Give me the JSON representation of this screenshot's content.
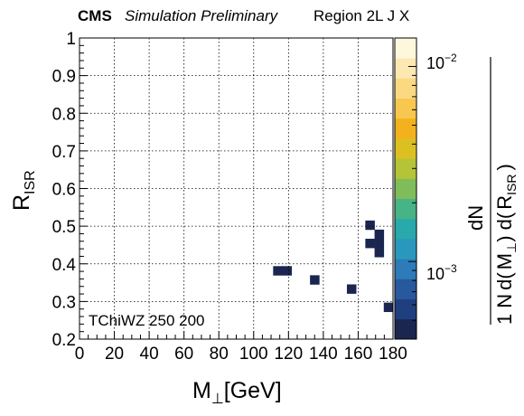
{
  "header": {
    "experiment": "CMS",
    "status": "Simulation Preliminary",
    "region": "Region 2L J X"
  },
  "annotation": "TChiWZ 250 200",
  "chart_data": {
    "type": "heatmap",
    "xlabel": {
      "main": "M",
      "sub": "⊥",
      "unit": "[GeV]"
    },
    "ylabel": {
      "main": "R",
      "sub": "ISR"
    },
    "zlabel": {
      "numerator": "dN",
      "one": "1",
      "N": "N",
      "d1": "d(",
      "M": "M",
      "Msub": "⊥",
      "d2": ") d(",
      "R": "R",
      "Rsub": "ISR",
      "close": ")"
    },
    "xlim": [
      0,
      180
    ],
    "ylim": [
      0.2,
      1.0
    ],
    "x_ticks": [
      0,
      20,
      40,
      60,
      80,
      100,
      120,
      140,
      160,
      180
    ],
    "x_tick_labels": [
      "0",
      "20",
      "40",
      "60",
      "80",
      "100",
      "120",
      "140",
      "160",
      "180"
    ],
    "y_ticks": [
      0.2,
      0.3,
      0.4,
      0.5,
      0.6,
      0.7,
      0.8,
      0.9,
      1.0
    ],
    "y_tick_labels": [
      "0.2",
      "0.3",
      "0.4",
      "0.5",
      "0.6",
      "0.7",
      "0.8",
      "0.9",
      "1"
    ],
    "z_scale": "log",
    "zlim": [
      0.0004,
      0.014
    ],
    "z_tick_labels": [
      {
        "value": 0.01,
        "base": "10",
        "exp": "−2"
      },
      {
        "value": 0.001,
        "base": "10",
        "exp": "−3"
      }
    ],
    "grid": true,
    "colormap": [
      "#1a2550",
      "#1f3f7f",
      "#28589d",
      "#2d7bb8",
      "#2a98bd",
      "#29a9ab",
      "#47b486",
      "#7fbd5a",
      "#b5c436",
      "#dcc022",
      "#f3b21d",
      "#f7c74f",
      "#fbd983",
      "#fde8b2",
      "#fff7dc"
    ],
    "bins": {
      "nx": 34,
      "ny": 33,
      "x_start": 0,
      "x_width": 5.294,
      "y_start": 0.2,
      "y_width": 0.02424,
      "values": [
        [
          0,
          0,
          0,
          0,
          0,
          0,
          0,
          0,
          0,
          0,
          0,
          0,
          0,
          0,
          0,
          0,
          0,
          0,
          0,
          0,
          0,
          0,
          0,
          0,
          0,
          0,
          0,
          0,
          0,
          0,
          0,
          0,
          0,
          0
        ],
        [
          0,
          0,
          0,
          0,
          0,
          0,
          0,
          0,
          0,
          0,
          0,
          0,
          0,
          0,
          0,
          0,
          0,
          0,
          0,
          0,
          0,
          0,
          0,
          0,
          0,
          0,
          0,
          0,
          0,
          0,
          0,
          0,
          0,
          0
        ],
        [
          0,
          0,
          0,
          0,
          0,
          0,
          0,
          0,
          0,
          0,
          0,
          0,
          0,
          0,
          0,
          0,
          0,
          0,
          0,
          0,
          0,
          0,
          0,
          0,
          0,
          0,
          0,
          0,
          0,
          0,
          0,
          0,
          0,
          0
        ],
        [
          0,
          0,
          0,
          0,
          0,
          0,
          0,
          0,
          0,
          0,
          0,
          0,
          0,
          0,
          0,
          0,
          0,
          0,
          0,
          0,
          0,
          0,
          0,
          0,
          0,
          0,
          0,
          0,
          0,
          0,
          0,
          0,
          0,
          0.0005
        ],
        [
          0,
          0,
          0,
          0,
          0,
          0,
          0,
          0,
          0,
          0,
          0,
          0,
          0,
          0,
          0,
          0,
          0,
          0,
          0,
          0,
          0,
          0,
          0,
          0,
          0,
          0,
          0,
          0,
          0,
          0,
          0,
          0,
          0,
          0
        ],
        [
          0,
          0,
          0,
          0,
          0,
          0,
          0,
          0,
          0,
          0,
          0,
          0,
          0,
          0,
          0,
          0,
          0,
          0,
          0,
          0,
          0,
          0,
          0,
          0,
          0,
          0,
          0,
          0,
          0,
          0.0005,
          0,
          0,
          0,
          0
        ],
        [
          0,
          0,
          0,
          0,
          0,
          0,
          0,
          0,
          0,
          0,
          0,
          0,
          0,
          0,
          0,
          0,
          0,
          0,
          0,
          0,
          0,
          0,
          0,
          0,
          0,
          0.0005,
          0,
          0,
          0,
          0,
          0,
          0,
          0,
          0
        ],
        [
          0,
          0,
          0,
          0,
          0,
          0,
          0,
          0,
          0,
          0,
          0,
          0,
          0,
          0,
          0,
          0,
          0,
          0,
          0,
          0,
          0,
          0.0005,
          0.0005,
          0,
          0,
          0,
          0,
          0,
          0,
          0,
          0,
          0,
          0,
          0
        ],
        [
          0,
          0,
          0,
          0,
          0,
          0,
          0,
          0,
          0,
          0,
          0,
          0,
          0,
          0,
          0,
          0,
          0,
          0,
          0,
          0,
          0,
          0,
          0,
          0,
          0,
          0,
          0,
          0,
          0,
          0,
          0,
          0,
          0,
          0
        ],
        [
          0,
          0,
          0,
          0,
          0,
          0,
          0,
          0,
          0,
          0,
          0,
          0,
          0,
          0,
          0,
          0,
          0,
          0,
          0,
          0,
          0,
          0,
          0,
          0,
          0,
          0,
          0,
          0,
          0,
          0,
          0,
          0,
          0.0005,
          0
        ],
        [
          0,
          0,
          0,
          0,
          0,
          0,
          0,
          0,
          0,
          0,
          0,
          0,
          0,
          0,
          0,
          0,
          0,
          0,
          0,
          0,
          0,
          0,
          0,
          0,
          0,
          0,
          0,
          0,
          0,
          0,
          0,
          0.0005,
          0.0005,
          0
        ],
        [
          0,
          0,
          0,
          0,
          0,
          0,
          0,
          0,
          0,
          0,
          0,
          0,
          0,
          0,
          0,
          0,
          0,
          0,
          0,
          0,
          0,
          0,
          0,
          0,
          0,
          0,
          0,
          0,
          0,
          0,
          0,
          0,
          0.0005,
          0
        ],
        [
          0,
          0,
          0,
          0,
          0,
          0,
          0,
          0,
          0,
          0,
          0,
          0,
          0,
          0,
          0,
          0,
          0,
          0,
          0,
          0,
          0,
          0,
          0,
          0,
          0,
          0,
          0,
          0,
          0,
          0,
          0,
          0.0005,
          0,
          0
        ],
        [
          0,
          0,
          0,
          0,
          0,
          0,
          0,
          0,
          0,
          0,
          0,
          0,
          0,
          0,
          0,
          0,
          0,
          0,
          0,
          0,
          0,
          0,
          0,
          0,
          0,
          0,
          0,
          0,
          0,
          0,
          0,
          0,
          0,
          0
        ],
        [
          0,
          0,
          0,
          0,
          0,
          0,
          0,
          0,
          0,
          0,
          0,
          0,
          0,
          0,
          0,
          0,
          0,
          0,
          0,
          0,
          0,
          0,
          0,
          0,
          0,
          0,
          0,
          0,
          0,
          0,
          0,
          0,
          0,
          0
        ],
        [
          0,
          0,
          0,
          0,
          0,
          0,
          0,
          0,
          0,
          0,
          0,
          0,
          0,
          0,
          0,
          0,
          0,
          0,
          0,
          0,
          0,
          0,
          0,
          0,
          0,
          0,
          0,
          0,
          0,
          0,
          0,
          0,
          0,
          0
        ],
        [
          0,
          0,
          0,
          0,
          0,
          0,
          0,
          0,
          0,
          0,
          0,
          0,
          0,
          0,
          0,
          0,
          0,
          0,
          0,
          0,
          0,
          0,
          0,
          0,
          0,
          0,
          0,
          0,
          0,
          0,
          0,
          0,
          0,
          0
        ],
        [
          0,
          0,
          0,
          0,
          0,
          0,
          0,
          0,
          0,
          0,
          0,
          0,
          0,
          0,
          0,
          0,
          0,
          0,
          0,
          0,
          0,
          0,
          0,
          0,
          0,
          0,
          0,
          0,
          0,
          0,
          0,
          0,
          0,
          0
        ],
        [
          0,
          0,
          0,
          0,
          0,
          0,
          0,
          0,
          0,
          0,
          0,
          0,
          0,
          0,
          0,
          0,
          0,
          0,
          0,
          0,
          0,
          0,
          0,
          0,
          0,
          0,
          0,
          0,
          0,
          0,
          0,
          0,
          0,
          0
        ],
        [
          0,
          0,
          0,
          0,
          0,
          0,
          0,
          0,
          0,
          0,
          0,
          0,
          0,
          0,
          0,
          0,
          0,
          0,
          0,
          0,
          0,
          0,
          0,
          0,
          0,
          0,
          0,
          0,
          0,
          0,
          0,
          0,
          0,
          0
        ],
        [
          0,
          0,
          0,
          0,
          0,
          0,
          0,
          0,
          0,
          0,
          0,
          0,
          0,
          0,
          0,
          0,
          0,
          0,
          0,
          0,
          0,
          0,
          0,
          0,
          0,
          0,
          0,
          0,
          0,
          0,
          0,
          0,
          0,
          0
        ],
        [
          0,
          0,
          0,
          0,
          0,
          0,
          0,
          0,
          0,
          0,
          0,
          0,
          0,
          0,
          0,
          0,
          0,
          0,
          0,
          0,
          0,
          0,
          0,
          0,
          0,
          0,
          0,
          0,
          0,
          0,
          0,
          0,
          0,
          0
        ],
        [
          0,
          0,
          0,
          0,
          0,
          0,
          0,
          0,
          0,
          0,
          0,
          0,
          0,
          0,
          0,
          0,
          0,
          0,
          0,
          0,
          0,
          0,
          0,
          0,
          0,
          0,
          0,
          0,
          0,
          0,
          0,
          0,
          0,
          0
        ],
        [
          0,
          0,
          0,
          0,
          0,
          0,
          0,
          0,
          0,
          0,
          0,
          0,
          0,
          0,
          0,
          0,
          0,
          0,
          0,
          0,
          0,
          0,
          0,
          0,
          0,
          0,
          0,
          0,
          0,
          0,
          0,
          0,
          0,
          0
        ],
        [
          0,
          0,
          0,
          0,
          0,
          0,
          0,
          0,
          0,
          0,
          0,
          0,
          0,
          0,
          0,
          0,
          0,
          0,
          0,
          0,
          0,
          0,
          0,
          0,
          0,
          0,
          0,
          0,
          0,
          0,
          0,
          0,
          0,
          0
        ],
        [
          0,
          0,
          0,
          0,
          0,
          0,
          0,
          0,
          0,
          0,
          0,
          0,
          0,
          0,
          0,
          0,
          0,
          0,
          0,
          0,
          0,
          0,
          0,
          0,
          0,
          0,
          0,
          0,
          0,
          0,
          0,
          0,
          0,
          0
        ],
        [
          0,
          0,
          0,
          0,
          0,
          0,
          0,
          0,
          0,
          0,
          0,
          0,
          0,
          0,
          0,
          0,
          0,
          0,
          0,
          0,
          0,
          0,
          0,
          0,
          0,
          0,
          0,
          0,
          0,
          0,
          0,
          0,
          0,
          0
        ],
        [
          0,
          0,
          0,
          0,
          0,
          0,
          0,
          0,
          0,
          0,
          0,
          0,
          0,
          0,
          0,
          0,
          0,
          0,
          0,
          0,
          0,
          0,
          0,
          0,
          0,
          0,
          0,
          0,
          0,
          0,
          0,
          0,
          0,
          0
        ],
        [
          0,
          0,
          0,
          0,
          0,
          0,
          0,
          0,
          0,
          0,
          0,
          0,
          0,
          0,
          0,
          0,
          0,
          0,
          0,
          0,
          0,
          0,
          0,
          0,
          0,
          0,
          0,
          0,
          0,
          0,
          0,
          0,
          0,
          0
        ],
        [
          0,
          0,
          0,
          0,
          0,
          0,
          0,
          0,
          0,
          0,
          0,
          0,
          0,
          0,
          0,
          0,
          0,
          0,
          0,
          0,
          0,
          0,
          0,
          0,
          0,
          0,
          0,
          0,
          0,
          0,
          0,
          0,
          0,
          0
        ],
        [
          0,
          0,
          0,
          0,
          0,
          0,
          0,
          0,
          0,
          0,
          0,
          0,
          0,
          0,
          0,
          0,
          0,
          0,
          0,
          0,
          0,
          0,
          0,
          0,
          0,
          0,
          0,
          0,
          0,
          0,
          0,
          0,
          0,
          0
        ],
        [
          0,
          0,
          0,
          0,
          0,
          0,
          0,
          0,
          0,
          0,
          0,
          0,
          0,
          0,
          0,
          0,
          0,
          0,
          0,
          0,
          0,
          0,
          0,
          0,
          0,
          0,
          0,
          0,
          0,
          0,
          0,
          0,
          0,
          0
        ],
        [
          0,
          0,
          0,
          0,
          0,
          0,
          0,
          0,
          0,
          0,
          0,
          0,
          0,
          0,
          0,
          0,
          0,
          0,
          0,
          0,
          0,
          0,
          0,
          0,
          0,
          0,
          0,
          0,
          0,
          0,
          0,
          0,
          0,
          0
        ]
      ]
    }
  }
}
